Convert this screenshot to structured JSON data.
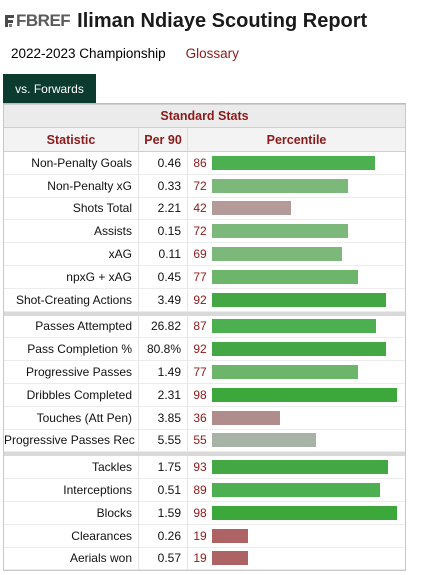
{
  "header": {
    "logo_text": "FBREF",
    "title": "Iliman Ndiaye Scouting Report"
  },
  "subheader": {
    "season": "2022-2023 Championship",
    "glossary": "Glossary"
  },
  "tab": {
    "label": "vs. Forwards"
  },
  "table": {
    "section_title": "Standard Stats",
    "columns": {
      "statistic": "Statistic",
      "per90": "Per 90",
      "percentile": "Percentile"
    },
    "groups": [
      [
        {
          "stat": "Non-Penalty Goals",
          "per90": "0.46",
          "pct": 86,
          "color": "#4caf50"
        },
        {
          "stat": "Non-Penalty xG",
          "per90": "0.33",
          "pct": 72,
          "color": "#7cb87a"
        },
        {
          "stat": "Shots Total",
          "per90": "2.21",
          "pct": 42,
          "color": "#b59a9a"
        },
        {
          "stat": "Assists",
          "per90": "0.15",
          "pct": 72,
          "color": "#7cb87a"
        },
        {
          "stat": "xAG",
          "per90": "0.11",
          "pct": 69,
          "color": "#7cb87a"
        },
        {
          "stat": "npxG + xAG",
          "per90": "0.45",
          "pct": 77,
          "color": "#6db56a"
        },
        {
          "stat": "Shot-Creating Actions",
          "per90": "3.49",
          "pct": 92,
          "color": "#43a843"
        }
      ],
      [
        {
          "stat": "Passes Attempted",
          "per90": "26.82",
          "pct": 87,
          "color": "#4caf50"
        },
        {
          "stat": "Pass Completion %",
          "per90": "80.8%",
          "pct": 92,
          "color": "#43a843"
        },
        {
          "stat": "Progressive Passes",
          "per90": "1.49",
          "pct": 77,
          "color": "#6db56a"
        },
        {
          "stat": "Dribbles Completed",
          "per90": "2.31",
          "pct": 98,
          "color": "#3ca83c"
        },
        {
          "stat": "Touches (Att Pen)",
          "per90": "3.85",
          "pct": 36,
          "color": "#b08c8c"
        },
        {
          "stat": "Progressive Passes Rec",
          "per90": "5.55",
          "pct": 55,
          "color": "#a7b3a7"
        }
      ],
      [
        {
          "stat": "Tackles",
          "per90": "1.75",
          "pct": 93,
          "color": "#43a843"
        },
        {
          "stat": "Interceptions",
          "per90": "0.51",
          "pct": 89,
          "color": "#4caf50"
        },
        {
          "stat": "Blocks",
          "per90": "1.59",
          "pct": 98,
          "color": "#3ca83c"
        },
        {
          "stat": "Clearances",
          "per90": "0.26",
          "pct": 19,
          "color": "#ad6363"
        },
        {
          "stat": "Aerials won",
          "per90": "0.57",
          "pct": 19,
          "color": "#ad6363"
        }
      ]
    ]
  }
}
